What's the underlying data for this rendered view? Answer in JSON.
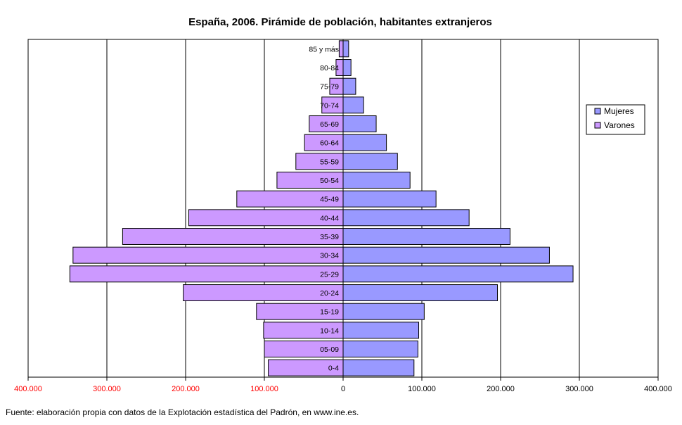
{
  "chart_data": {
    "type": "bar",
    "orientation": "horizontal-pyramid",
    "title": "España, 2006. Pirámide de población, habitantes extranjeros",
    "categories": [
      "0-4",
      "05-09",
      "10-14",
      "15-19",
      "20-24",
      "25-29",
      "30-34",
      "35-39",
      "40-44",
      "45-49",
      "50-54",
      "55-59",
      "60-64",
      "65-69",
      "70-74",
      "75-79",
      "80-84",
      "85 y más"
    ],
    "series": [
      {
        "name": "Mujeres",
        "color": "#9999ff",
        "values": [
          90000,
          95000,
          96000,
          103000,
          196000,
          292000,
          262000,
          212000,
          160000,
          118000,
          85000,
          69000,
          55000,
          42000,
          26000,
          16000,
          10000,
          7000
        ]
      },
      {
        "name": "Varones",
        "color": "#cc99ff",
        "values": [
          95000,
          100000,
          101000,
          110000,
          203000,
          347000,
          343000,
          280000,
          196000,
          135000,
          84000,
          60000,
          49000,
          43000,
          27000,
          17000,
          9000,
          5000
        ]
      }
    ],
    "xlim": [
      -400000,
      400000
    ],
    "xticks": [
      "400.000",
      "300.000",
      "200.000",
      "100.000",
      "0",
      "100.000",
      "200.000",
      "300.000",
      "400.000"
    ],
    "legend_position": "right",
    "grid": "vertical",
    "negative_tick_color": "#ff0000"
  },
  "footer": "Fuente: elaboración propia con datos de la Explotación estadística del Padrón, en www.ine.es."
}
